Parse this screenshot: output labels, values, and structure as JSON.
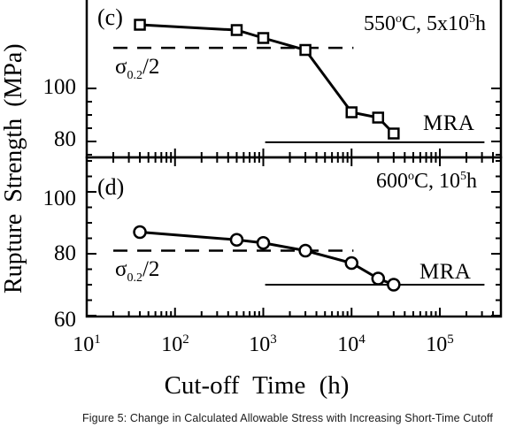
{
  "figure": {
    "caption": "Figure 5: Change in Calculated Allowable Stress with Increasing Short-Time Cutoff"
  },
  "chart_data": {
    "type": "line",
    "x_axis": {
      "label": "Cut-off Time  (h)",
      "scale": "log",
      "range_h": [
        10,
        460000
      ],
      "ticks": [
        {
          "base": "10",
          "exp": "1"
        },
        {
          "base": "10",
          "exp": "2"
        },
        {
          "base": "10",
          "exp": "3"
        },
        {
          "base": "10",
          "exp": "4"
        },
        {
          "base": "10",
          "exp": "5"
        }
      ]
    },
    "y_axis": {
      "label": "Rupture Strength  (MPa)",
      "units": "MPa"
    },
    "panels": [
      {
        "id": "c",
        "panel_label": "(c)",
        "condition": {
          "t1": "550",
          "sup1": "o",
          "t2": "C, 5x10",
          "sup2": "5",
          "t3": "h"
        },
        "marker": "square",
        "y_tick_labels": [
          "100",
          "80"
        ],
        "y_visible_range": [
          74,
          133
        ],
        "points": [
          {
            "t": 40,
            "v": 124
          },
          {
            "t": 500,
            "v": 122
          },
          {
            "t": 1000,
            "v": 119
          },
          {
            "t": 3000,
            "v": 114.5
          },
          {
            "t": 10000,
            "v": 91
          },
          {
            "t": 20000,
            "v": 89
          },
          {
            "t": 30000,
            "v": 83
          }
        ],
        "sigma_line": {
          "label_sigma": "σ",
          "label_sub": "0.2",
          "label_rest": "/2",
          "value": 115.3,
          "t_start": 20,
          "t_end": 10500
        },
        "mra_line": {
          "label": "MRA",
          "value": 79.7,
          "t_start": 1050,
          "t_end": 320000
        }
      },
      {
        "id": "d",
        "panel_label": "(d)",
        "condition": {
          "t1": "600",
          "sup1": "o",
          "t2": "C, 10",
          "sup2": "5",
          "t3": "h"
        },
        "marker": "circle",
        "y_tick_labels": [
          "100",
          "80",
          "60"
        ],
        "y_visible_range": [
          60,
          111
        ],
        "points": [
          {
            "t": 40,
            "v": 87
          },
          {
            "t": 500,
            "v": 84.5
          },
          {
            "t": 1000,
            "v": 83.5
          },
          {
            "t": 3000,
            "v": 81
          },
          {
            "t": 10000,
            "v": 77
          },
          {
            "t": 20000,
            "v": 72
          },
          {
            "t": 30000,
            "v": 70
          }
        ],
        "sigma_line": {
          "label_sigma": "σ",
          "label_sub": "0.2",
          "label_rest": "/2",
          "value": 81,
          "t_start": 20,
          "t_end": 10500
        },
        "mra_line": {
          "label": "MRA",
          "value": 70,
          "t_start": 1050,
          "t_end": 320000
        }
      }
    ]
  }
}
